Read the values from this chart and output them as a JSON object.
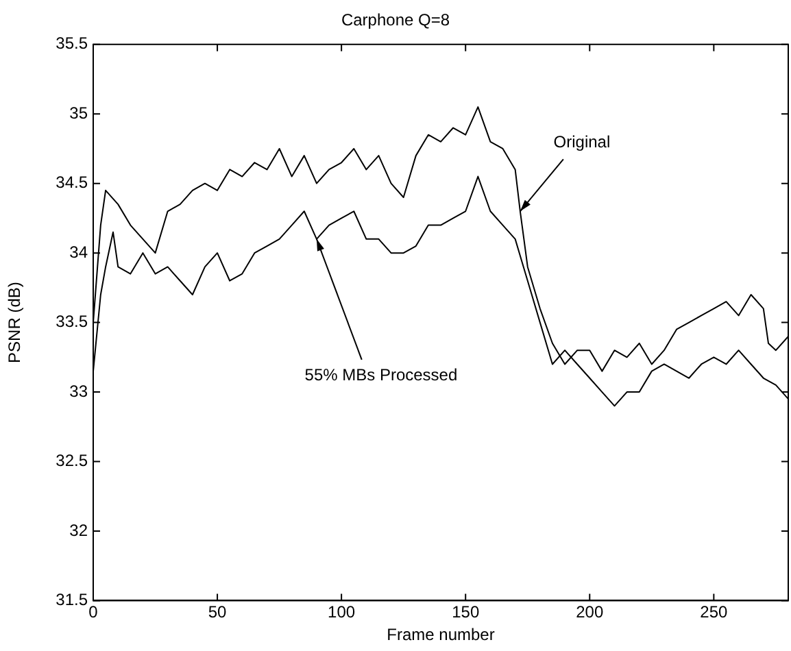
{
  "chart_data": {
    "type": "line",
    "title": "Carphone Q=8",
    "xlabel": "Frame number",
    "ylabel": "PSNR (dB)",
    "xlim": [
      0,
      280
    ],
    "xticks": [
      0,
      50,
      100,
      150,
      200,
      250
    ],
    "ylim": [
      31.5,
      35.5
    ],
    "yticks": [
      31.5,
      32,
      32.5,
      33,
      33.5,
      34,
      34.5,
      35,
      35.5
    ],
    "grid": false,
    "legend": false,
    "marker": "none",
    "line_style": "solid",
    "series": [
      {
        "color": "#000000",
        "x": [
          0,
          3,
          5,
          10,
          15,
          20,
          25,
          30,
          35,
          40,
          45,
          50,
          55,
          60,
          65,
          70,
          75,
          80,
          85,
          90,
          95,
          100,
          105,
          110,
          115,
          120,
          125,
          130,
          135,
          140,
          145,
          150,
          155,
          158,
          160,
          165,
          170,
          172,
          175,
          180,
          185,
          190,
          195,
          200,
          205,
          210,
          215,
          220,
          225,
          230,
          235,
          240,
          245,
          250,
          255,
          260,
          265,
          270,
          272,
          275,
          280
        ],
        "values": [
          33.5,
          34.2,
          34.45,
          34.35,
          34.2,
          34.1,
          34.0,
          34.3,
          34.35,
          34.45,
          34.5,
          34.45,
          34.6,
          34.55,
          34.65,
          34.6,
          34.75,
          34.55,
          34.7,
          34.5,
          34.6,
          34.65,
          34.75,
          34.6,
          34.7,
          34.5,
          34.4,
          34.7,
          34.85,
          34.8,
          34.9,
          34.85,
          35.05,
          34.9,
          34.8,
          34.75,
          34.6,
          34.3,
          33.9,
          33.6,
          33.35,
          33.2,
          33.3,
          33.3,
          33.15,
          33.3,
          33.25,
          33.35,
          33.2,
          33.3,
          33.45,
          33.5,
          33.55,
          33.6,
          33.65,
          33.55,
          33.7,
          33.6,
          33.35,
          33.3,
          33.4
        ]
      },
      {
        "color": "#000000",
        "x": [
          0,
          3,
          5,
          8,
          10,
          15,
          20,
          25,
          30,
          35,
          40,
          45,
          50,
          55,
          60,
          65,
          70,
          75,
          80,
          85,
          90,
          95,
          100,
          105,
          110,
          115,
          120,
          125,
          130,
          135,
          140,
          145,
          150,
          155,
          160,
          165,
          170,
          175,
          180,
          185,
          190,
          195,
          200,
          205,
          210,
          215,
          220,
          225,
          230,
          235,
          240,
          245,
          250,
          255,
          260,
          265,
          270,
          275,
          280
        ],
        "values": [
          33.15,
          33.7,
          33.9,
          34.15,
          33.9,
          33.85,
          34.0,
          33.85,
          33.9,
          33.8,
          33.7,
          33.9,
          34.0,
          33.8,
          33.85,
          34.0,
          34.05,
          34.1,
          34.2,
          34.3,
          34.1,
          34.2,
          34.25,
          34.3,
          34.1,
          34.1,
          34.0,
          34.0,
          34.05,
          34.2,
          34.2,
          34.25,
          34.3,
          34.55,
          34.3,
          34.2,
          34.1,
          33.8,
          33.5,
          33.2,
          33.3,
          33.2,
          33.1,
          33.0,
          32.9,
          33.0,
          33.0,
          33.15,
          33.2,
          33.15,
          33.1,
          33.2,
          33.25,
          33.2,
          33.3,
          33.2,
          33.1,
          33.05,
          32.95
        ]
      }
    ],
    "annotations": [
      {
        "text": "Original",
        "x": 172,
        "y": 34.3
      },
      {
        "text": "55% MBs Processed",
        "x": 90,
        "y": 34.1
      }
    ]
  }
}
